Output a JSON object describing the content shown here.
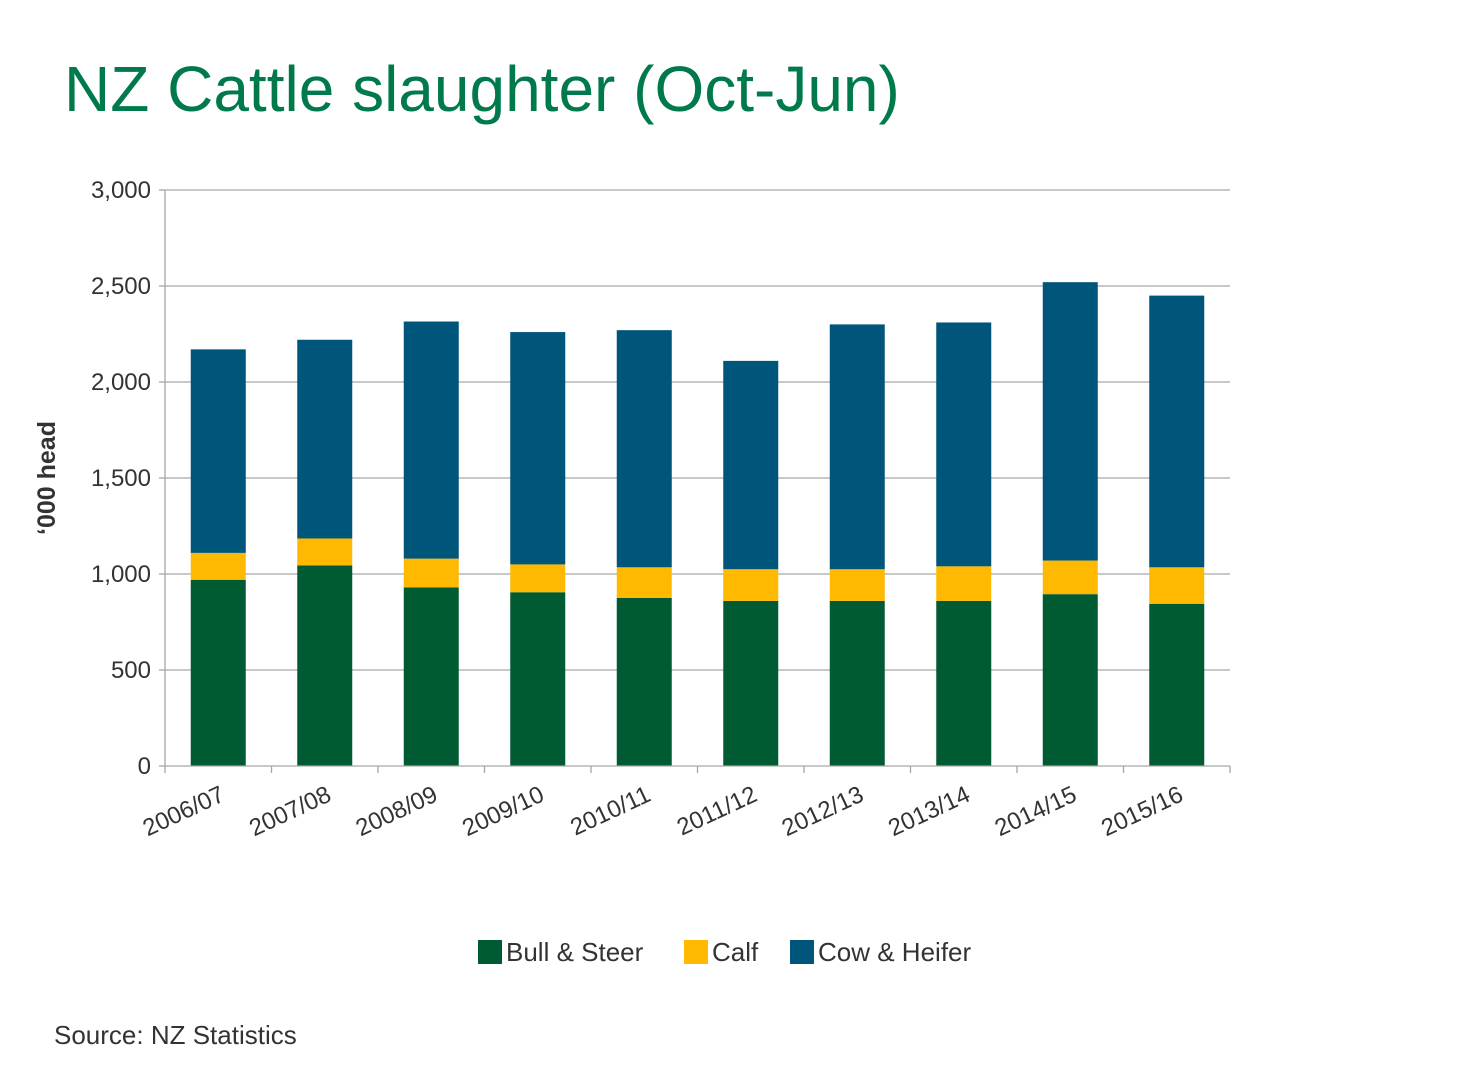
{
  "page": {
    "title": "NZ Cattle slaughter (Oct-Jun)",
    "source": "Source: NZ Statistics"
  },
  "chart_data": {
    "type": "bar",
    "stacked": true,
    "categories": [
      "2006/07",
      "2007/08",
      "2008/09",
      "2009/10",
      "2010/11",
      "2011/12",
      "2012/13",
      "2013/14",
      "2014/15",
      "2015/16"
    ],
    "series": [
      {
        "name": "Bull & Steer",
        "color": "#005a32",
        "values": [
          970,
          1045,
          930,
          905,
          875,
          860,
          860,
          860,
          895,
          845
        ]
      },
      {
        "name": "Calf",
        "color": "#ffb900",
        "values": [
          140,
          140,
          150,
          145,
          160,
          165,
          165,
          180,
          175,
          190
        ]
      },
      {
        "name": "Cow & Heifer",
        "color": "#00557a",
        "values": [
          1060,
          1035,
          1235,
          1210,
          1235,
          1085,
          1275,
          1270,
          1450,
          1415
        ]
      }
    ],
    "ylabel": "‘000 head",
    "xlabel": "",
    "ylim": [
      0,
      3000
    ],
    "yticks": [
      0,
      500,
      1000,
      1500,
      2000,
      2500,
      3000
    ],
    "ytick_labels": [
      "0",
      "500",
      "1,000",
      "1,500",
      "2,000",
      "2,500",
      "3,000"
    ],
    "grid": true,
    "legend_position": "bottom"
  }
}
